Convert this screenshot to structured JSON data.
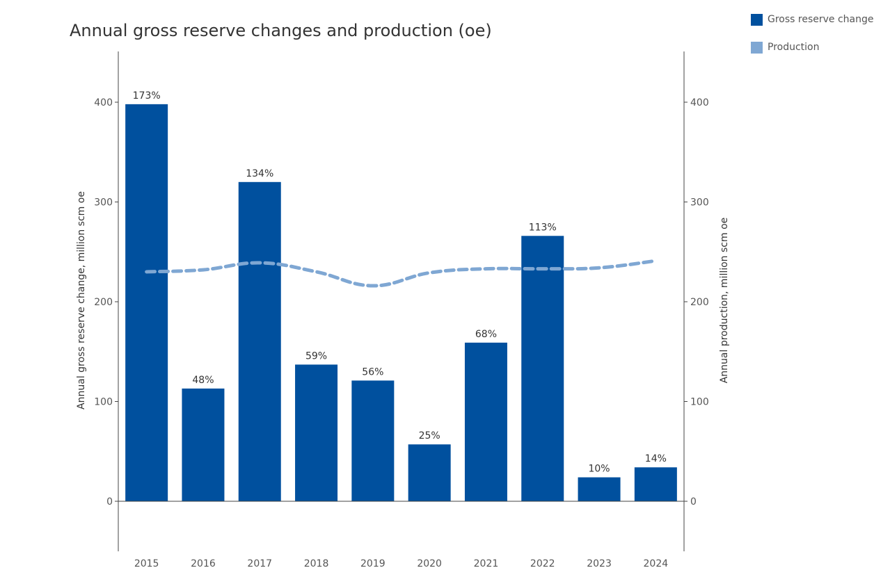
{
  "chart_data": {
    "type": "bar",
    "title": "Annual gross reserve changes and production (oe)",
    "categories": [
      "2015",
      "2016",
      "2017",
      "2018",
      "2019",
      "2020",
      "2021",
      "2022",
      "2023",
      "2024"
    ],
    "series": [
      {
        "name": "Gross reserve change",
        "type": "bar",
        "axis": "left",
        "color": "#00509e",
        "values": [
          398,
          113,
          320,
          137,
          121,
          57,
          159,
          266,
          24,
          34
        ],
        "labels": [
          "173%",
          "48%",
          "134%",
          "59%",
          "56%",
          "25%",
          "68%",
          "113%",
          "10%",
          "14%"
        ]
      },
      {
        "name": "Production",
        "type": "line",
        "style": "dashed",
        "axis": "right",
        "color": "#7fa7d3",
        "values": [
          230,
          232,
          239,
          230,
          216,
          229,
          233,
          233,
          234,
          241
        ]
      }
    ],
    "ylabel": "Annual gross reserve change, million scm oe",
    "y2label": "Annual production, million scm oe",
    "ylim": [
      -50,
      450
    ],
    "y2lim": [
      -50,
      450
    ],
    "yticks": [
      0,
      100,
      200,
      300,
      400
    ],
    "legend_position": "top-right",
    "grid": false
  }
}
